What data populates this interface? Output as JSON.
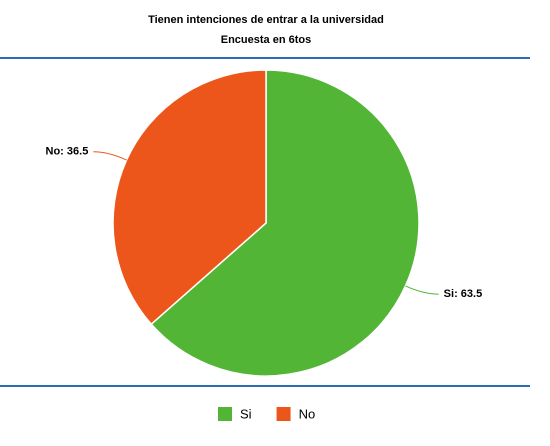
{
  "chart_data": {
    "type": "pie",
    "title": "Tienen intenciones de entrar a la universidad",
    "subtitle": "Encuesta en 6tos",
    "categories": [
      "Si",
      "No"
    ],
    "values": [
      63.5,
      36.5
    ],
    "value_labels": [
      "Si: 63.5",
      "No: 36.5"
    ],
    "colors": [
      "#52b535",
      "#ec561b"
    ],
    "legend": "bottom"
  }
}
